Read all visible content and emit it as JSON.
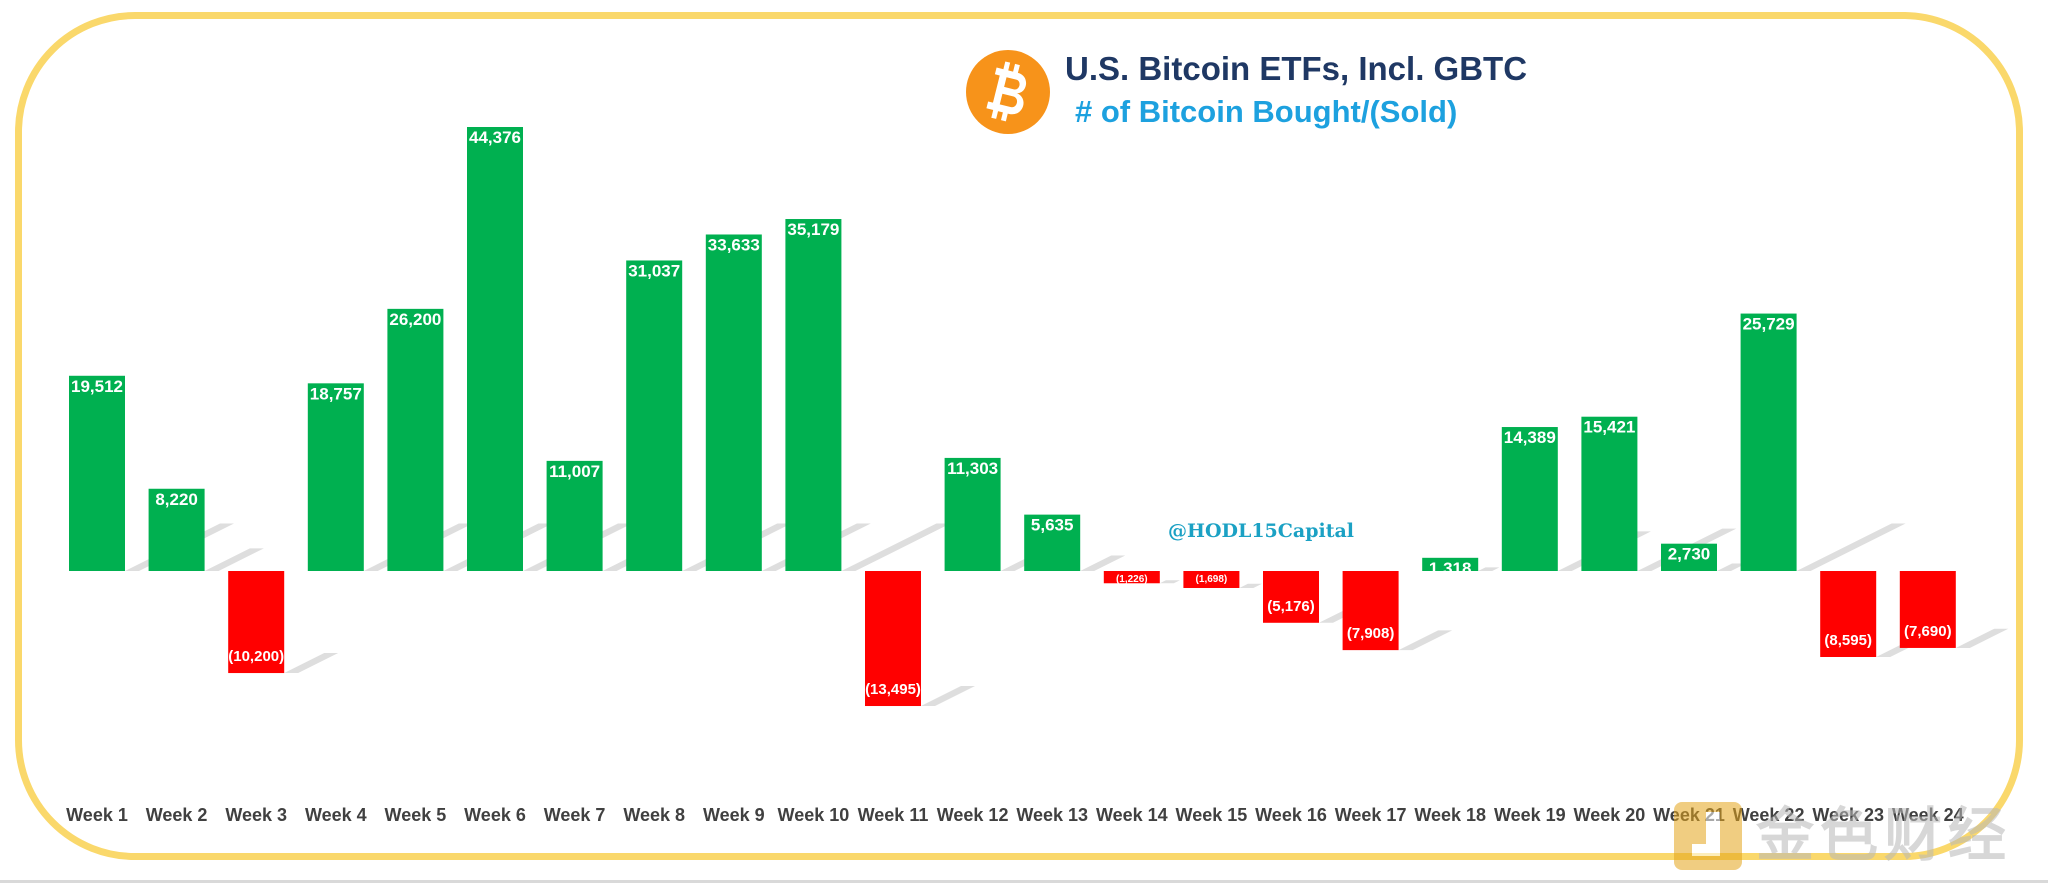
{
  "title": "U.S. Bitcoin ETFs, Incl. GBTC",
  "subtitle": "# of Bitcoin Bought/(Sold)",
  "handle": "@HODL15Capital",
  "watermark": "金色财经",
  "colors": {
    "positive": "#00b050",
    "negative": "#ff0000",
    "title": "#1f3864",
    "subtitle": "#1da1df",
    "border": "#fad86b",
    "bitcoin": "#f7931a"
  },
  "chart_data": {
    "type": "bar",
    "title": "U.S. Bitcoin ETFs, Incl. GBTC",
    "subtitle": "# of Bitcoin Bought/(Sold)",
    "xlabel": "",
    "ylabel": "",
    "ylim": [
      -17000,
      47000
    ],
    "grid": false,
    "categories": [
      "Week 1",
      "Week 2",
      "Week 3",
      "Week 4",
      "Week 5",
      "Week 6",
      "Week 7",
      "Week 8",
      "Week 9",
      "Week 10",
      "Week 11",
      "Week 12",
      "Week 13",
      "Week 14",
      "Week 15",
      "Week 16",
      "Week 17",
      "Week 18",
      "Week 19",
      "Week 20",
      "Week 21",
      "Week 22",
      "Week 23",
      "Week 24"
    ],
    "values": [
      19512,
      8220,
      -10200,
      18757,
      26200,
      44376,
      11007,
      31037,
      33633,
      35179,
      -13495,
      11303,
      5635,
      -1226,
      -1698,
      -5176,
      -7908,
      1318,
      14389,
      15421,
      2730,
      25729,
      -8595,
      -7690
    ],
    "labels": [
      "19,512",
      "8,220",
      "(10,200)",
      "18,757",
      "26,200",
      "44,376",
      "11,007",
      "31,037",
      "33,633",
      "35,179",
      "(13,495)",
      "11,303",
      "5,635",
      "(1,226)",
      "(1,698)",
      "(5,176)",
      "(7,908)",
      "1,318",
      "14,389",
      "15,421",
      "2,730",
      "25,729",
      "(8,595)",
      "(7,690)"
    ]
  }
}
